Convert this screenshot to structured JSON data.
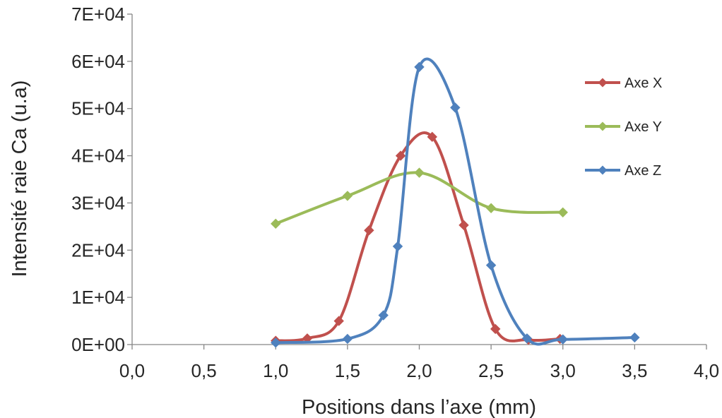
{
  "chart_data": {
    "type": "scatter",
    "title": "",
    "xlabel": "Positions dans l’axe (mm)",
    "ylabel": "Intensité raie Ca (u.a)",
    "xlim": [
      0,
      4
    ],
    "ylim": [
      0,
      70000
    ],
    "x_ticks": [
      "0,0",
      "0,5",
      "1,0",
      "1,5",
      "2,0",
      "2,5",
      "3,0",
      "3,5",
      "4,0"
    ],
    "y_ticks": [
      "0E+00",
      "1E+04",
      "2E+04",
      "3E+04",
      "4E+04",
      "5E+04",
      "6E+04",
      "7E+04"
    ],
    "grid": false,
    "legend_position": "right",
    "series": [
      {
        "name": "Axe X",
        "color": "#C0504D",
        "points": [
          [
            1.0,
            800
          ],
          [
            1.22,
            1300
          ],
          [
            1.44,
            5000
          ],
          [
            1.65,
            24200
          ],
          [
            1.87,
            40000
          ],
          [
            2.09,
            44000
          ],
          [
            2.31,
            25300
          ],
          [
            2.53,
            3300
          ],
          [
            2.76,
            1000
          ],
          [
            2.98,
            1200
          ]
        ]
      },
      {
        "name": "Axe Y",
        "color": "#9BBB59",
        "points": [
          [
            1.0,
            25600
          ],
          [
            1.5,
            31500
          ],
          [
            2.0,
            36400
          ],
          [
            2.5,
            28900
          ],
          [
            3.0,
            28000
          ]
        ]
      },
      {
        "name": "Axe Z",
        "color": "#4F81BD",
        "points": [
          [
            1.0,
            400
          ],
          [
            1.5,
            1200
          ],
          [
            1.75,
            6200
          ],
          [
            1.85,
            20800
          ],
          [
            2.0,
            58800
          ],
          [
            2.25,
            50200
          ],
          [
            2.5,
            16800
          ],
          [
            2.75,
            1300
          ],
          [
            3.0,
            1100
          ],
          [
            3.5,
            1500
          ]
        ]
      }
    ]
  }
}
